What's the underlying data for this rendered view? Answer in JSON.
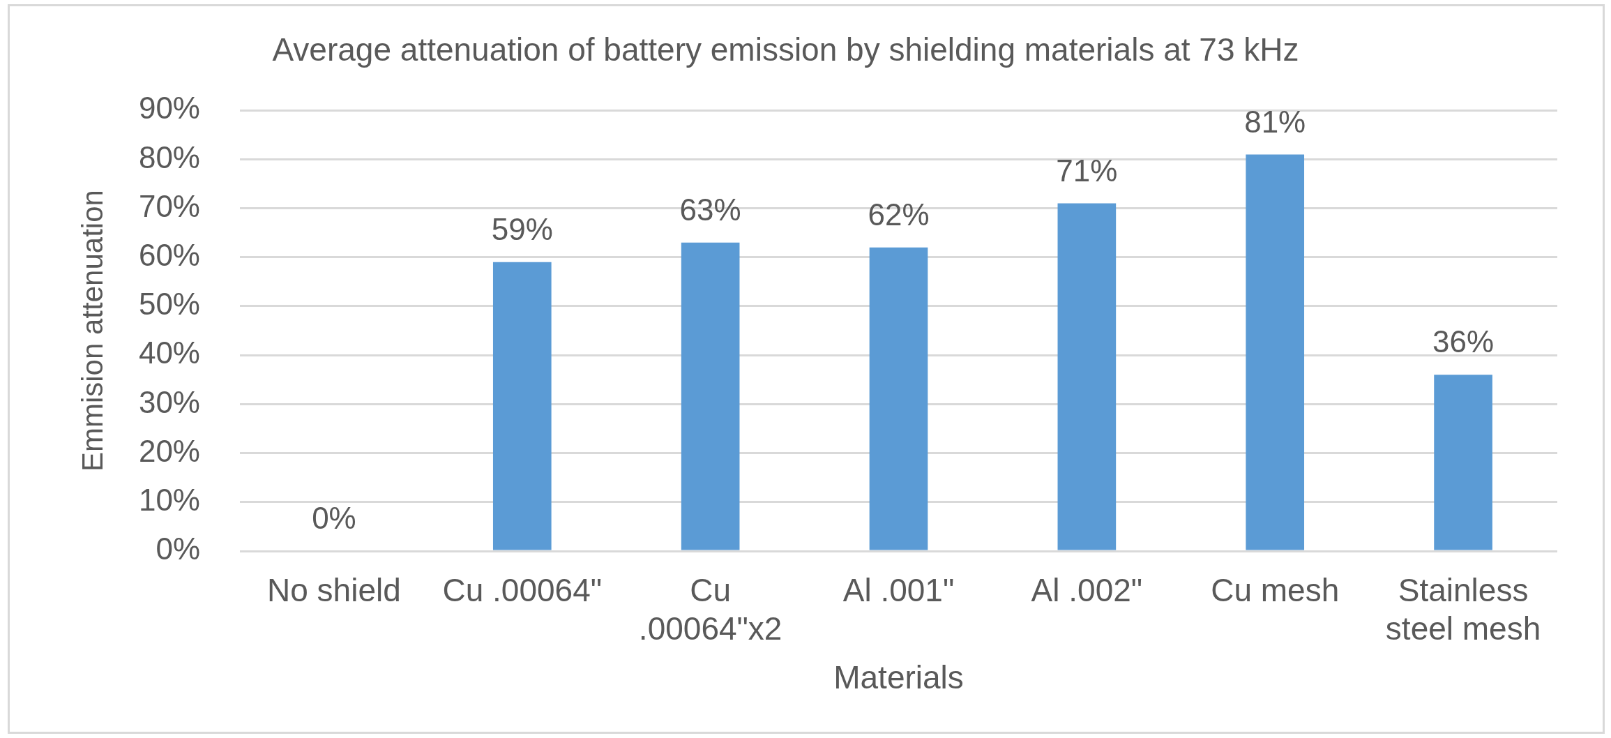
{
  "chart_data": {
    "type": "bar",
    "title": "Average attenuation of battery emission by shielding materials at 73 kHz",
    "xlabel": "Materials",
    "ylabel": "Emmision attenuation",
    "categories": [
      "No shield",
      "Cu .00064\"",
      "Cu .00064\"x2",
      "Al .001\"",
      "Al .002\"",
      "Cu mesh",
      "Stainless steel mesh"
    ],
    "values": [
      0,
      59,
      63,
      62,
      71,
      81,
      36
    ],
    "value_labels": [
      "0%",
      "59%",
      "63%",
      "62%",
      "71%",
      "81%",
      "36%"
    ],
    "color": "#5b9bd5",
    "ylim": [
      0,
      90
    ],
    "yticks": [
      {
        "value": 0,
        "label": "0%"
      },
      {
        "value": 10,
        "label": "10%"
      },
      {
        "value": 20,
        "label": "20%"
      },
      {
        "value": 30,
        "label": "30%"
      },
      {
        "value": 40,
        "label": "40%"
      },
      {
        "value": 50,
        "label": "50%"
      },
      {
        "value": 60,
        "label": "60%"
      },
      {
        "value": 70,
        "label": "70%"
      },
      {
        "value": 80,
        "label": "80%"
      },
      {
        "value": 90,
        "label": "90%"
      }
    ],
    "grid": "y",
    "legend": false
  }
}
